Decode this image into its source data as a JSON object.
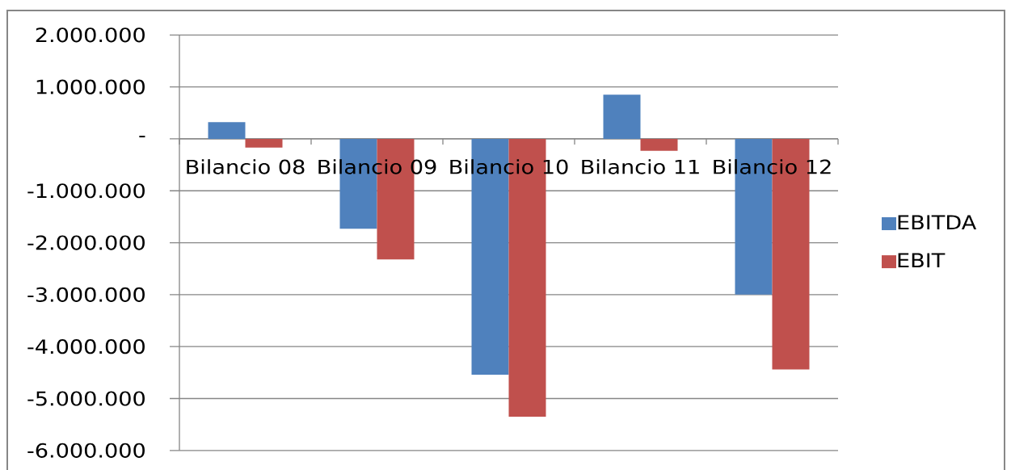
{
  "chart_data": {
    "type": "bar",
    "categories": [
      "Bilancio 08",
      "Bilancio 09",
      "Bilancio 10",
      "Bilancio 11",
      "Bilancio 12"
    ],
    "series": [
      {
        "name": "EBITDA",
        "color": "#4f81bd",
        "values": [
          320000,
          -1730000,
          -4540000,
          850000,
          -3000000
        ]
      },
      {
        "name": "EBIT",
        "color": "#c0504d",
        "values": [
          -170000,
          -2320000,
          -5350000,
          -230000,
          -4440000
        ]
      }
    ],
    "ylim": [
      -6000000,
      2000000
    ],
    "yticks": [
      {
        "value": -6000000,
        "label": "-6.000.000"
      },
      {
        "value": -5000000,
        "label": "-5.000.000"
      },
      {
        "value": -4000000,
        "label": "-4.000.000"
      },
      {
        "value": -3000000,
        "label": "-3.000.000"
      },
      {
        "value": -2000000,
        "label": "-2.000.000"
      },
      {
        "value": -1000000,
        "label": "-1.000.000"
      },
      {
        "value": 0,
        "label": "-"
      },
      {
        "value": 1000000,
        "label": "1.000.000"
      },
      {
        "value": 2000000,
        "label": "2.000.000"
      }
    ],
    "grid": "y",
    "legend": "right"
  }
}
